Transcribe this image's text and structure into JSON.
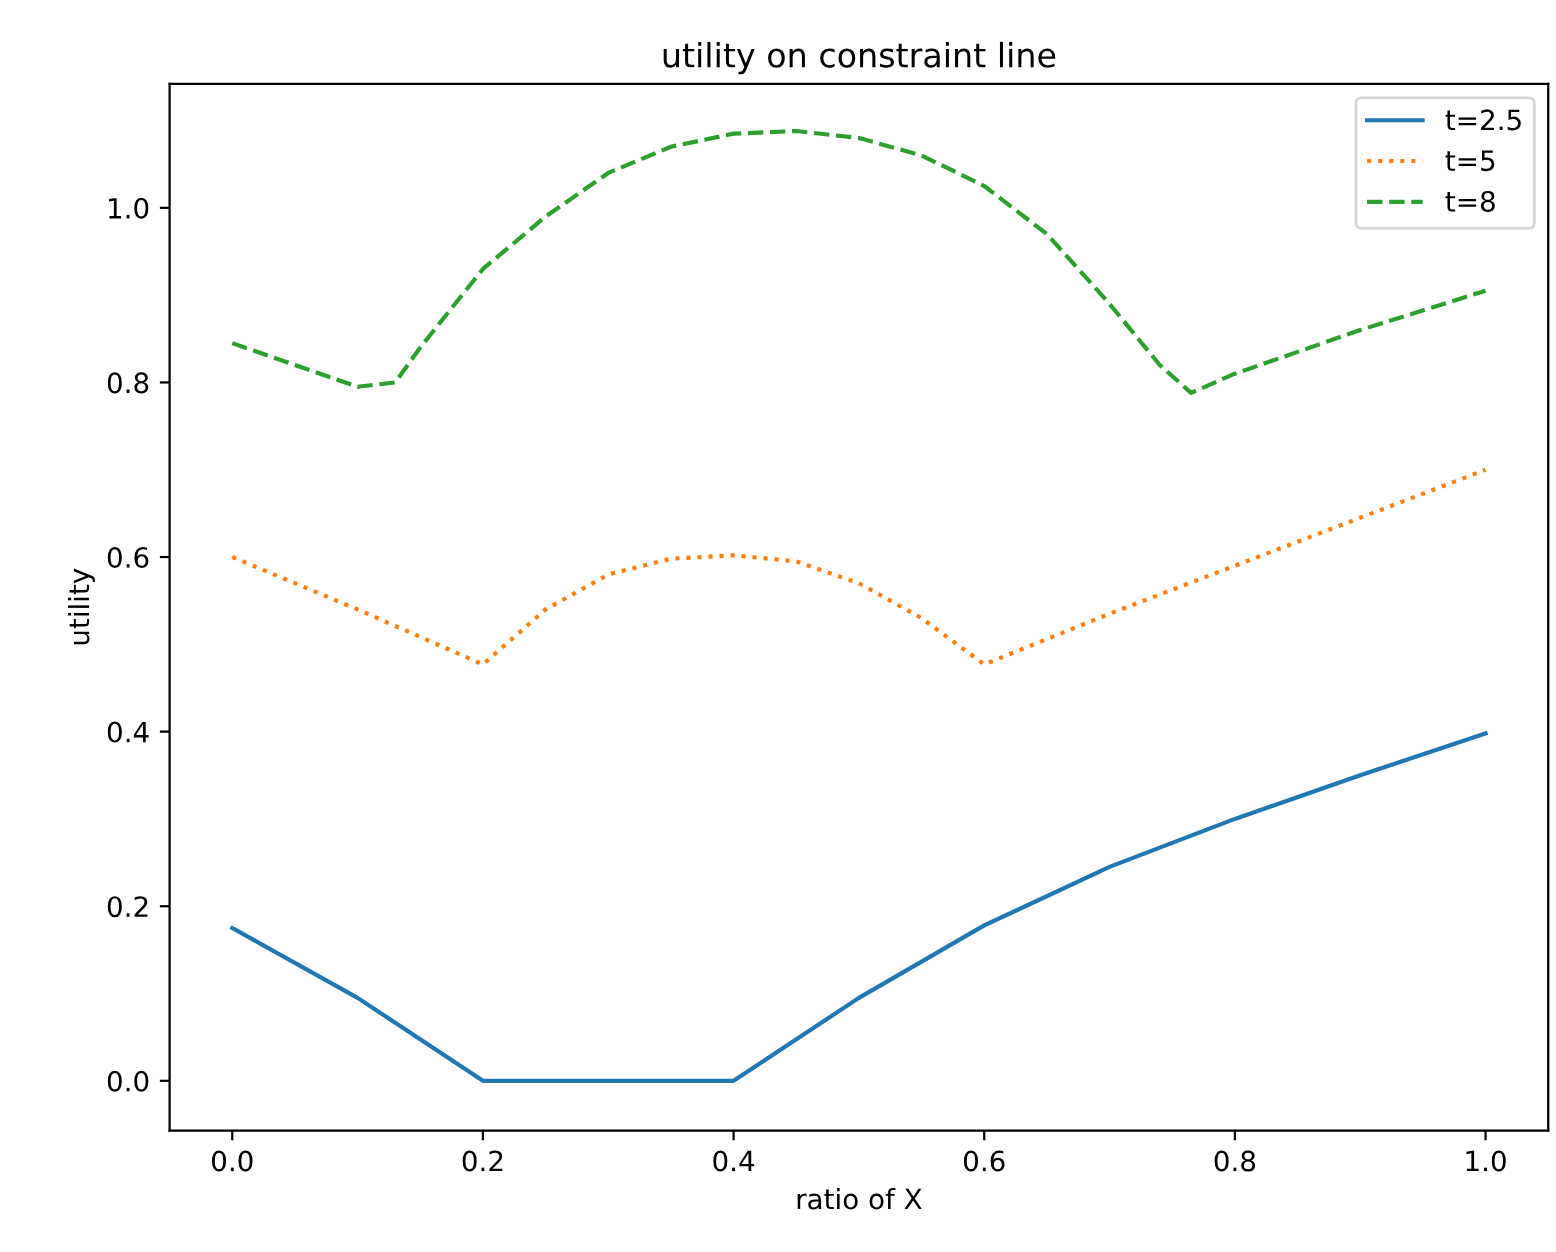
{
  "chart_data": {
    "type": "line",
    "title": "utility on constraint line",
    "xlabel": "ratio of X",
    "ylabel": "utility",
    "xlim": [
      -0.05,
      1.05
    ],
    "ylim": [
      -0.057,
      1.142
    ],
    "xticks": [
      {
        "value": 0,
        "label": "0.0"
      },
      0.2,
      0.4,
      0.6,
      0.8,
      {
        "value": 1,
        "label": "1.0"
      }
    ],
    "yticks": [
      {
        "value": 0,
        "label": "0.0"
      },
      0.2,
      0.4,
      0.6,
      0.8,
      {
        "value": 1,
        "label": "1.0"
      }
    ],
    "legend": "top right",
    "grid": false,
    "series": [
      {
        "name": "t=2.5",
        "color": "#1f77b4",
        "line_style": "solid",
        "x": [
          0,
          0.1,
          0.2,
          0.4,
          0.5,
          0.6,
          0.7,
          0.8,
          0.9,
          1.0
        ],
        "values": [
          0.175,
          0.095,
          0,
          0,
          0.095,
          0.178,
          0.245,
          0.3,
          0.35,
          0.398
        ]
      },
      {
        "name": "t=5",
        "color": "#ff7f0e",
        "line_style": "dotted",
        "x": [
          0,
          0.1,
          0.2,
          0.25,
          0.3,
          0.35,
          0.4,
          0.45,
          0.5,
          0.55,
          0.6,
          0.7,
          0.8,
          0.9,
          1.0
        ],
        "values": [
          0.6,
          0.54,
          0.477,
          0.54,
          0.58,
          0.598,
          0.602,
          0.595,
          0.57,
          0.53,
          0.477,
          0.535,
          0.59,
          0.645,
          0.7
        ]
      },
      {
        "name": "t=8",
        "color": "#2ca02c",
        "line_style": "dashed",
        "x": [
          0,
          0.1,
          0.13,
          0.15,
          0.2,
          0.25,
          0.3,
          0.35,
          0.4,
          0.45,
          0.5,
          0.55,
          0.6,
          0.65,
          0.7,
          0.74,
          0.765,
          0.8,
          0.9,
          1.0
        ],
        "values": [
          0.845,
          0.795,
          0.8,
          0.84,
          0.93,
          0.99,
          1.04,
          1.07,
          1.085,
          1.088,
          1.08,
          1.06,
          1.025,
          0.97,
          0.89,
          0.82,
          0.788,
          0.81,
          0.86,
          0.905
        ]
      }
    ]
  }
}
